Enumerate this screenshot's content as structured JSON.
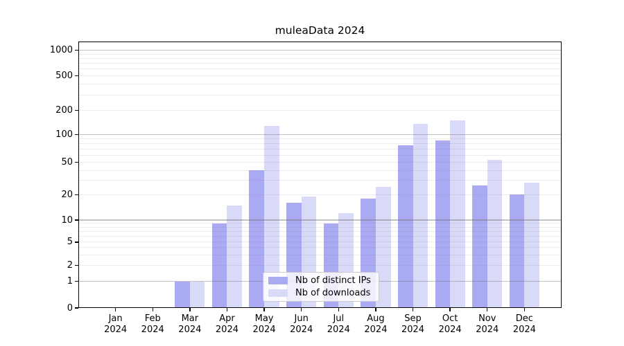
{
  "title": "muleaData 2024",
  "colors": {
    "bar_distinct_ips": "#aaaaf2",
    "bar_downloads": "#d9d9f8",
    "grid_major": "#c6c6c6",
    "grid_minor": "#ececec",
    "axis": "#000000",
    "legend_border": "#cbcbcb"
  },
  "chart_data": {
    "type": "bar",
    "title": "muleaData 2024",
    "scale": "symlog",
    "grid": true,
    "legend_position": "lower center",
    "categories": [
      "Jan",
      "Feb",
      "Mar",
      "Apr",
      "May",
      "Jun",
      "Jul",
      "Aug",
      "Sep",
      "Oct",
      "Nov",
      "Dec"
    ],
    "year_label": "2024",
    "x_tick_labels": [
      "Jan 2024",
      "Feb 2024",
      "Mar 2024",
      "Apr 2024",
      "May 2024",
      "Jun 2024",
      "Jul 2024",
      "Aug 2024",
      "Sep 2024",
      "Oct 2024",
      "Nov 2024",
      "Dec 2024"
    ],
    "series": [
      {
        "name": "Nb of distinct IPs",
        "color": "#aaaaf2",
        "values": [
          0,
          0,
          1,
          9,
          40,
          16,
          9,
          18,
          76,
          86,
          26,
          20
        ]
      },
      {
        "name": "Nb of downloads",
        "color": "#d9d9f8",
        "values": [
          0,
          0,
          1,
          15,
          128,
          19,
          12,
          25,
          136,
          151,
          53,
          28
        ]
      }
    ],
    "y_ticks": [
      0,
      1,
      2,
      5,
      10,
      20,
      50,
      100,
      200,
      500,
      1000
    ],
    "y_major_gridlines": [
      1,
      10,
      100,
      1000
    ],
    "ylim": [
      0,
      1400
    ]
  }
}
